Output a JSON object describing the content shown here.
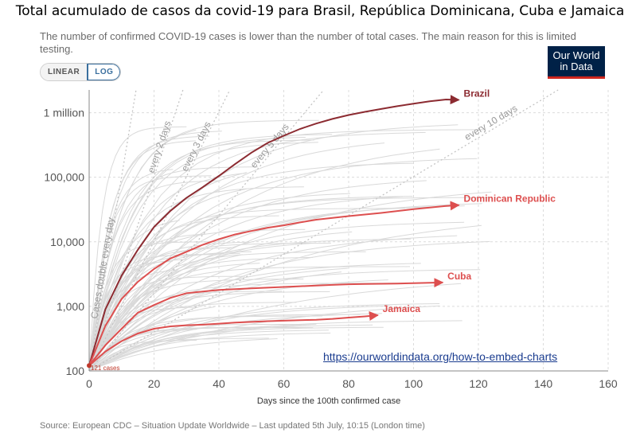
{
  "header": {
    "title": "Total acumulado de casos da covid-19 para Brasil, República Dominicana, Cuba e Jamaica",
    "subtitle": "The number of confirmed COVID-19 cases is lower than the number of total cases. The main reason for this is limited testing."
  },
  "scale_toggle": {
    "linear_label": "LINEAR",
    "log_label": "LOG",
    "selected": "LOG"
  },
  "logo": {
    "line1": "Our World",
    "line2": "in Data"
  },
  "embed_link": "https://ourworldindata.org/how-to-embed-charts",
  "source": "Source: European CDC – Situation Update Worldwide – Last updated 5th July, 10:15 (London time)",
  "colors": {
    "brazil": "#8c2b31",
    "others": "#dd4f4f",
    "background_lines": "#d9d9d9",
    "guides": "#c4c4c4"
  },
  "chart_data": {
    "type": "line",
    "xlabel": "Days since the 100th confirmed case",
    "ylabel": "",
    "x_scale": "linear",
    "y_scale": "log",
    "xlim": [
      0,
      160
    ],
    "ylim": [
      100,
      2500000
    ],
    "x_ticks": [
      0,
      20,
      40,
      60,
      80,
      100,
      120,
      140,
      160
    ],
    "y_ticks": [
      {
        "value": 100,
        "label": "100"
      },
      {
        "value": 1000,
        "label": "1,000"
      },
      {
        "value": 10000,
        "label": "10,000"
      },
      {
        "value": 100000,
        "label": "100,000"
      },
      {
        "value": 1000000,
        "label": "1 million"
      }
    ],
    "grid": true,
    "start_annotation": "121 cases",
    "doubling_guides": [
      {
        "label": "Cases double every day",
        "days": 1
      },
      {
        "label": "every 2 days",
        "days": 2
      },
      {
        "label": "every 3 days",
        "days": 3
      },
      {
        "label": "every 5 days",
        "days": 5
      },
      {
        "label": "every 10 days",
        "days": 10
      }
    ],
    "series": [
      {
        "name": "Brazil",
        "points": [
          [
            0,
            121
          ],
          [
            5,
            900
          ],
          [
            10,
            3000
          ],
          [
            15,
            7500
          ],
          [
            20,
            17000
          ],
          [
            25,
            30000
          ],
          [
            30,
            48000
          ],
          [
            35,
            70000
          ],
          [
            40,
            105000
          ],
          [
            45,
            160000
          ],
          [
            50,
            240000
          ],
          [
            55,
            340000
          ],
          [
            60,
            440000
          ],
          [
            65,
            560000
          ],
          [
            70,
            680000
          ],
          [
            75,
            800000
          ],
          [
            80,
            920000
          ],
          [
            85,
            1030000
          ],
          [
            90,
            1140000
          ],
          [
            95,
            1260000
          ],
          [
            100,
            1380000
          ],
          [
            105,
            1500000
          ],
          [
            110,
            1600000
          ],
          [
            114,
            1580000
          ]
        ]
      },
      {
        "name": "Dominican Republic",
        "points": [
          [
            0,
            121
          ],
          [
            5,
            500
          ],
          [
            10,
            1300
          ],
          [
            15,
            2400
          ],
          [
            20,
            3800
          ],
          [
            25,
            5500
          ],
          [
            30,
            7000
          ],
          [
            35,
            9000
          ],
          [
            40,
            11000
          ],
          [
            45,
            13000
          ],
          [
            50,
            14700
          ],
          [
            55,
            16500
          ],
          [
            60,
            18000
          ],
          [
            65,
            20000
          ],
          [
            70,
            22000
          ],
          [
            75,
            23500
          ],
          [
            80,
            25000
          ],
          [
            85,
            26500
          ],
          [
            90,
            28000
          ],
          [
            95,
            30000
          ],
          [
            100,
            32000
          ],
          [
            105,
            34000
          ],
          [
            110,
            36000
          ],
          [
            114,
            37000
          ]
        ]
      },
      {
        "name": "Cuba",
        "points": [
          [
            0,
            121
          ],
          [
            5,
            250
          ],
          [
            10,
            450
          ],
          [
            15,
            800
          ],
          [
            20,
            1050
          ],
          [
            25,
            1350
          ],
          [
            30,
            1600
          ],
          [
            35,
            1700
          ],
          [
            40,
            1800
          ],
          [
            45,
            1850
          ],
          [
            50,
            1900
          ],
          [
            55,
            1950
          ],
          [
            60,
            2000
          ],
          [
            65,
            2050
          ],
          [
            70,
            2100
          ],
          [
            75,
            2150
          ],
          [
            80,
            2200
          ],
          [
            85,
            2220
          ],
          [
            90,
            2240
          ],
          [
            95,
            2260
          ],
          [
            100,
            2290
          ],
          [
            105,
            2320
          ],
          [
            109,
            2340
          ]
        ]
      },
      {
        "name": "Jamaica",
        "points": [
          [
            0,
            121
          ],
          [
            5,
            200
          ],
          [
            10,
            290
          ],
          [
            15,
            380
          ],
          [
            20,
            450
          ],
          [
            25,
            490
          ],
          [
            30,
            510
          ],
          [
            35,
            520
          ],
          [
            40,
            540
          ],
          [
            45,
            560
          ],
          [
            50,
            575
          ],
          [
            55,
            590
          ],
          [
            60,
            600
          ],
          [
            65,
            610
          ],
          [
            70,
            620
          ],
          [
            75,
            640
          ],
          [
            80,
            670
          ],
          [
            85,
            700
          ],
          [
            89,
            730
          ]
        ]
      }
    ]
  }
}
